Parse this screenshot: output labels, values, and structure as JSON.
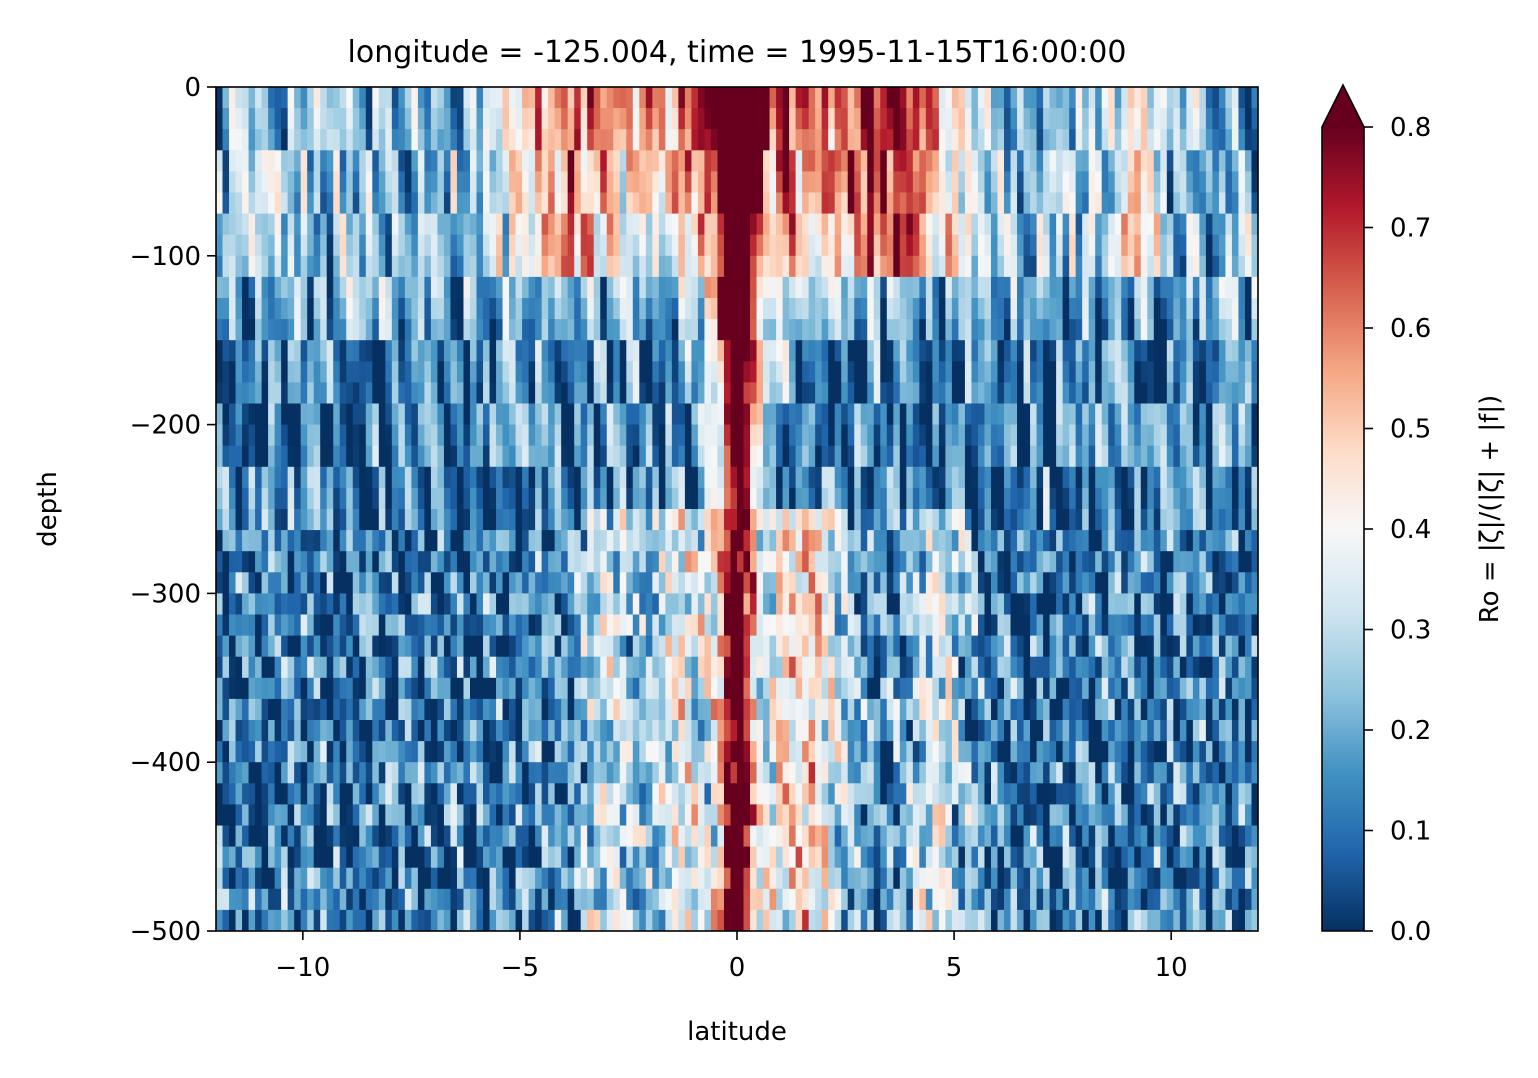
{
  "chart_data": {
    "type": "heatmap",
    "title": "longitude = -125.004, time = 1995-11-15T16:00:00",
    "xlabel": "latitude",
    "ylabel": "depth",
    "xlim": [
      -12,
      12
    ],
    "ylim": [
      -500,
      0
    ],
    "x_ticks": [
      -10,
      -5,
      0,
      5,
      10
    ],
    "x_tick_labels": [
      "−10",
      "−5",
      "0",
      "5",
      "10"
    ],
    "y_ticks": [
      0,
      -100,
      -200,
      -300,
      -400,
      -500
    ],
    "y_tick_labels": [
      "0",
      "−100",
      "−200",
      "−300",
      "−400",
      "−500"
    ],
    "colorbar": {
      "label": "Ro = |ζ|/(|ζ| + |f|)",
      "colormap": "RdBu_r",
      "vmin": 0.0,
      "vmax": 0.8,
      "extend": "max",
      "ticks": [
        0.0,
        0.1,
        0.2,
        0.3,
        0.4,
        0.5,
        0.6,
        0.7,
        0.8
      ],
      "tick_labels": [
        "0.0",
        "0.1",
        "0.2",
        "0.3",
        "0.4",
        "0.5",
        "0.6",
        "0.7",
        "0.8"
      ]
    },
    "features": [
      {
        "name": "equatorial core",
        "lat_range": [
          -0.3,
          0.3
        ],
        "depth_range": [
          -500,
          0
        ],
        "value": 0.8
      },
      {
        "name": "upper-ocean wedge",
        "lat_range": [
          -2,
          1.5
        ],
        "depth_range": [
          -200,
          0
        ],
        "value": 0.75
      },
      {
        "name": "off-equatorial bands",
        "lat_range": [
          -5,
          -3
        ],
        "depth_range": [
          -100,
          0
        ],
        "value": 0.55
      },
      {
        "name": "off-equatorial bands",
        "lat_range": [
          2.5,
          5
        ],
        "depth_range": [
          -100,
          0
        ],
        "value": 0.6
      },
      {
        "name": "mixed layer",
        "lat_range": [
          -12,
          12
        ],
        "depth_range": [
          -100,
          0
        ],
        "value": 0.25
      },
      {
        "name": "interior",
        "lat_range": [
          -12,
          12
        ],
        "depth_range": [
          -500,
          -100
        ],
        "value": 0.1
      }
    ]
  }
}
